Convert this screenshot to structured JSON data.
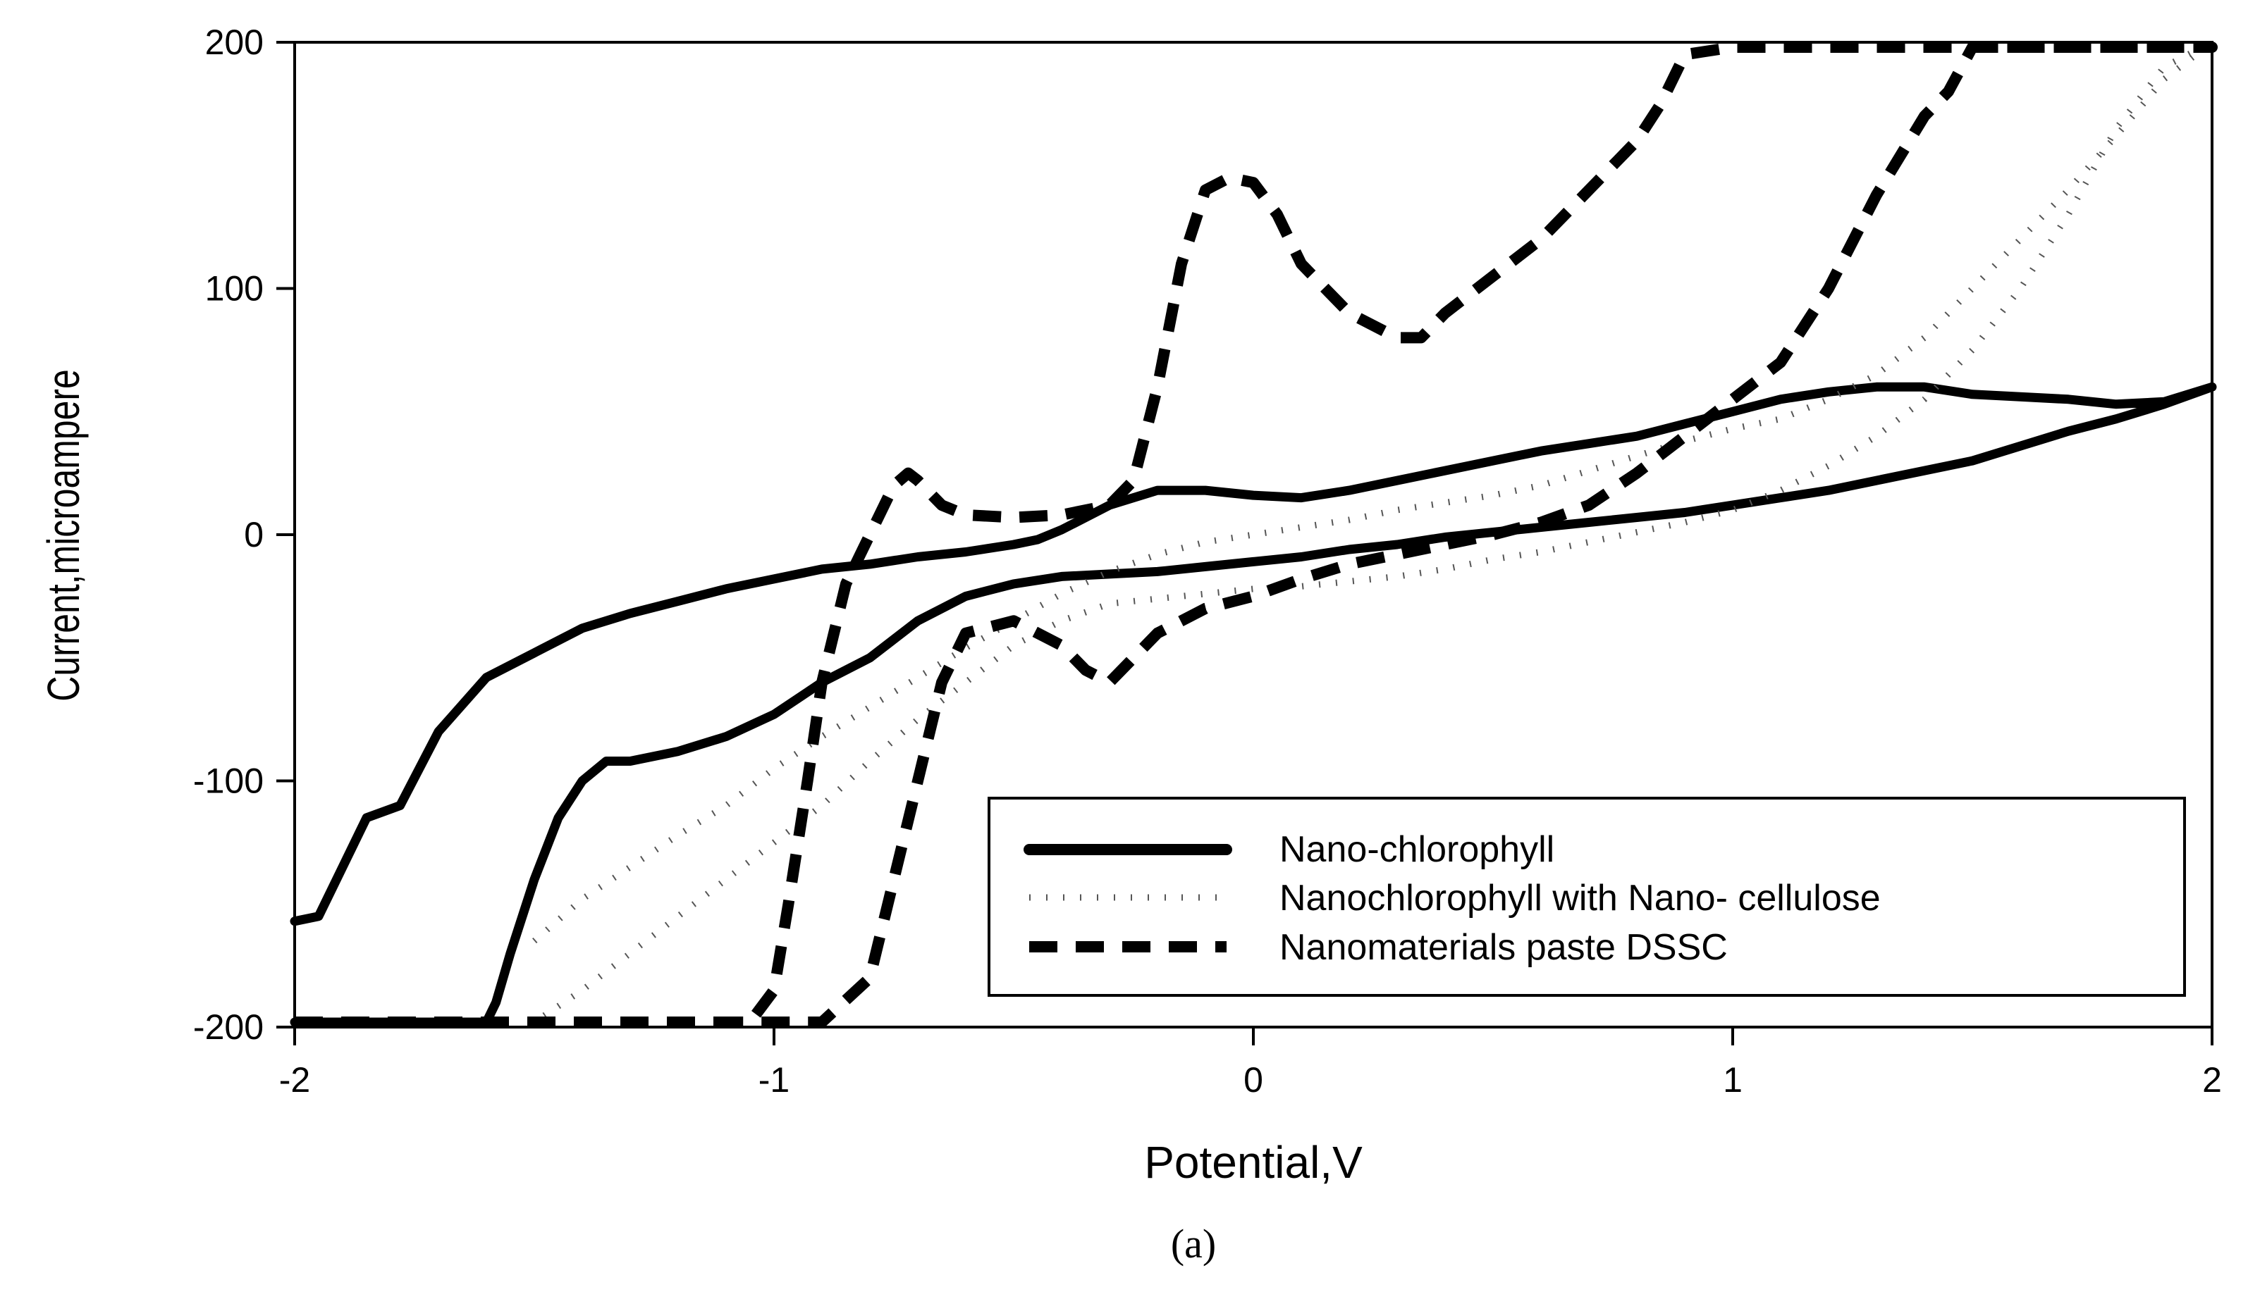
{
  "chart_data": {
    "type": "line",
    "title": "",
    "xlabel": "Potential,V",
    "ylabel": "Current,microampere",
    "caption": "(a)",
    "xlim": [
      -2,
      2
    ],
    "ylim": [
      -200,
      200
    ],
    "xticks": [
      -2,
      -1,
      0,
      1,
      2
    ],
    "yticks": [
      -200,
      -100,
      0,
      100,
      200
    ],
    "grid": false,
    "legend_position": "bottom-right",
    "series": [
      {
        "name": "Nano-chlorophyll",
        "style": "solid",
        "x": [
          -2.0,
          -1.95,
          -1.9,
          -1.85,
          -1.78,
          -1.7,
          -1.6,
          -1.5,
          -1.4,
          -1.3,
          -1.2,
          -1.1,
          -1.0,
          -0.9,
          -0.8,
          -0.7,
          -0.6,
          -0.5,
          -0.45,
          -0.4,
          -0.3,
          -0.2,
          -0.1,
          0.0,
          0.1,
          0.2,
          0.3,
          0.4,
          0.5,
          0.6,
          0.7,
          0.8,
          0.9,
          1.0,
          1.1,
          1.2,
          1.3,
          1.4,
          1.5,
          1.6,
          1.7,
          1.8,
          1.9,
          2.0,
          1.9,
          1.85,
          1.8,
          1.7,
          1.6,
          1.5,
          1.4,
          1.3,
          1.2,
          1.1,
          1.0,
          0.9,
          0.8,
          0.7,
          0.6,
          0.5,
          0.4,
          0.3,
          0.2,
          0.1,
          0.0,
          -0.1,
          -0.2,
          -0.3,
          -0.4,
          -0.5,
          -0.6,
          -0.7,
          -0.8,
          -0.9,
          -1.0,
          -1.1,
          -1.2,
          -1.3,
          -1.35,
          -1.4,
          -1.45,
          -1.5,
          -1.55,
          -1.58,
          -1.6,
          -1.7,
          -1.8,
          -1.9,
          -2.0
        ],
        "y": [
          -157,
          -155,
          -135,
          -115,
          -110,
          -80,
          -58,
          -48,
          -38,
          -32,
          -27,
          -22,
          -18,
          -14,
          -12,
          -9,
          -7,
          -4,
          -2,
          2,
          12,
          18,
          18,
          16,
          15,
          18,
          22,
          26,
          30,
          34,
          37,
          40,
          45,
          50,
          55,
          58,
          60,
          60,
          57,
          56,
          55,
          53,
          54,
          60,
          53,
          50,
          47,
          42,
          36,
          30,
          26,
          22,
          18,
          15,
          12,
          9,
          7,
          5,
          3,
          1,
          -1,
          -4,
          -6,
          -9,
          -11,
          -13,
          -15,
          -16,
          -17,
          -20,
          -25,
          -35,
          -50,
          -60,
          -73,
          -82,
          -88,
          -92,
          -92,
          -100,
          -115,
          -140,
          -170,
          -190,
          -198,
          -198,
          -198,
          -198,
          -198
        ]
      },
      {
        "name": "Nanochlorophyll with Nano- cellulose",
        "style": "dotted",
        "x": [
          -1.5,
          -1.4,
          -1.3,
          -1.2,
          -1.1,
          -1.0,
          -0.9,
          -0.8,
          -0.7,
          -0.6,
          -0.5,
          -0.4,
          -0.3,
          -0.2,
          -0.1,
          0.0,
          0.1,
          0.2,
          0.3,
          0.4,
          0.5,
          0.6,
          0.7,
          0.8,
          0.9,
          1.0,
          1.1,
          1.2,
          1.3,
          1.4,
          1.5,
          1.6,
          1.7,
          1.8,
          1.9,
          2.0,
          1.9,
          1.8,
          1.7,
          1.6,
          1.5,
          1.4,
          1.3,
          1.2,
          1.1,
          1.0,
          0.9,
          0.8,
          0.7,
          0.6,
          0.5,
          0.4,
          0.3,
          0.2,
          0.1,
          0.0,
          -0.1,
          -0.2,
          -0.3,
          -0.4,
          -0.5,
          -0.6,
          -0.7,
          -0.8,
          -0.9,
          -1.0,
          -1.1,
          -1.2,
          -1.3,
          -1.4,
          -1.5
        ],
        "y": [
          -165,
          -148,
          -135,
          -122,
          -110,
          -95,
          -82,
          -70,
          -58,
          -46,
          -35,
          -24,
          -15,
          -8,
          -3,
          0,
          3,
          6,
          10,
          13,
          16,
          20,
          26,
          32,
          38,
          43,
          47,
          55,
          65,
          80,
          100,
          120,
          140,
          162,
          185,
          200,
          190,
          165,
          130,
          100,
          75,
          55,
          40,
          28,
          18,
          10,
          5,
          1,
          -3,
          -7,
          -10,
          -14,
          -17,
          -19,
          -21,
          -22,
          -24,
          -26,
          -28,
          -35,
          -45,
          -60,
          -75,
          -92,
          -110,
          -125,
          -140,
          -155,
          -170,
          -185,
          -198
        ]
      },
      {
        "name": "Nanomaterials paste DSSC",
        "style": "dashed",
        "x": [
          -2.0,
          -1.8,
          -1.6,
          -1.4,
          -1.2,
          -1.05,
          -1.0,
          -0.97,
          -0.93,
          -0.9,
          -0.85,
          -0.8,
          -0.75,
          -0.72,
          -0.7,
          -0.65,
          -0.6,
          -0.5,
          -0.4,
          -0.3,
          -0.25,
          -0.2,
          -0.15,
          -0.1,
          -0.05,
          0.0,
          0.05,
          0.1,
          0.2,
          0.3,
          0.35,
          0.4,
          0.5,
          0.6,
          0.7,
          0.8,
          0.85,
          0.9,
          1.0,
          1.2,
          1.4,
          1.6,
          1.8,
          2.0,
          1.8,
          1.6,
          1.5,
          1.45,
          1.4,
          1.3,
          1.2,
          1.1,
          1.0,
          0.9,
          0.8,
          0.7,
          0.6,
          0.5,
          0.4,
          0.3,
          0.2,
          0.1,
          0.0,
          -0.1,
          -0.2,
          -0.25,
          -0.3,
          -0.35,
          -0.4,
          -0.5,
          -0.6,
          -0.65,
          -0.7,
          -0.75,
          -0.8,
          -0.9,
          -1.0,
          -1.1
        ],
        "y": [
          -198,
          -198,
          -198,
          -198,
          -198,
          -198,
          -185,
          -150,
          -100,
          -60,
          -20,
          0,
          20,
          25,
          22,
          12,
          8,
          7,
          8,
          12,
          22,
          60,
          110,
          140,
          145,
          143,
          130,
          110,
          90,
          80,
          80,
          90,
          105,
          120,
          140,
          160,
          175,
          195,
          198,
          198,
          198,
          198,
          198,
          198,
          198,
          198,
          198,
          180,
          170,
          138,
          100,
          70,
          55,
          40,
          25,
          12,
          5,
          0,
          -4,
          -8,
          -12,
          -18,
          -25,
          -30,
          -40,
          -50,
          -60,
          -55,
          -45,
          -35,
          -40,
          -60,
          -100,
          -140,
          -180,
          -198,
          -198,
          -198
        ]
      }
    ]
  }
}
